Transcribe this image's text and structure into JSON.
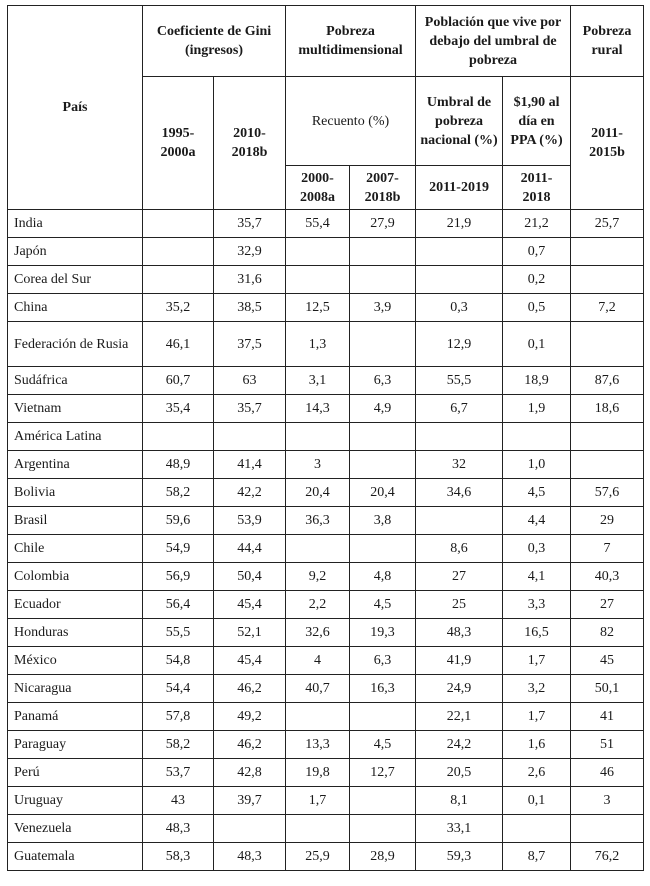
{
  "headers": {
    "pais": "País",
    "gini": "Coeficiente de Gini (ingresos)",
    "pobreza_multi": "Pobreza multidimensional",
    "umbral": "Población que vive por debajo del umbral de pobreza",
    "pobreza_rural": "Pobreza rural",
    "gini_1995": "1995-2000a",
    "gini_2010": "2010-2018b",
    "recuento": "Recuento (%)",
    "umbral_nacional": "Umbral de pobreza nacional (%)",
    "ppa": "$1,90 al día en PPA (%)",
    "rural_2011": "2011-2015b",
    "multi_2000": "2000-2008a",
    "multi_2007": "2007-2018b",
    "nac_2011": "2011-2019",
    "ppa_2011": "2011-2018"
  },
  "rows": [
    {
      "country": "India",
      "gini_a": "",
      "gini_b": "35,7",
      "multi_a": "55,4",
      "multi_b": "27,9",
      "nacional": "21,9",
      "ppa": "21,2",
      "rural": "25,7"
    },
    {
      "country": "Japón",
      "gini_a": "",
      "gini_b": "32,9",
      "multi_a": "",
      "multi_b": "",
      "nacional": "",
      "ppa": "0,7",
      "rural": ""
    },
    {
      "country": "Corea del Sur",
      "gini_a": "",
      "gini_b": "31,6",
      "multi_a": "",
      "multi_b": "",
      "nacional": "",
      "ppa": "0,2",
      "rural": ""
    },
    {
      "country": "China",
      "gini_a": "35,2",
      "gini_b": "38,5",
      "multi_a": "12,5",
      "multi_b": "3,9",
      "nacional": "0,3",
      "ppa": "0,5",
      "rural": "7,2"
    },
    {
      "country": "Federación de Rusia",
      "gini_a": "46,1",
      "gini_b": "37,5",
      "multi_a": "1,3",
      "multi_b": "",
      "nacional": "12,9",
      "ppa": "0,1",
      "rural": ""
    },
    {
      "country": "Sudáfrica",
      "gini_a": "60,7",
      "gini_b": "63",
      "multi_a": "3,1",
      "multi_b": "6,3",
      "nacional": "55,5",
      "ppa": "18,9",
      "rural": "87,6"
    },
    {
      "country": "Vietnam",
      "gini_a": "35,4",
      "gini_b": "35,7",
      "multi_a": "14,3",
      "multi_b": "4,9",
      "nacional": "6,7",
      "ppa": "1,9",
      "rural": "18,6"
    },
    {
      "country": "América Latina",
      "gini_a": "",
      "gini_b": "",
      "multi_a": "",
      "multi_b": "",
      "nacional": "",
      "ppa": "",
      "rural": ""
    },
    {
      "country": "Argentina",
      "gini_a": "48,9",
      "gini_b": "41,4",
      "multi_a": "3",
      "multi_b": "",
      "nacional": "32",
      "ppa": "1,0",
      "rural": ""
    },
    {
      "country": "Bolivia",
      "gini_a": "58,2",
      "gini_b": "42,2",
      "multi_a": "20,4",
      "multi_b": "20,4",
      "nacional": "34,6",
      "ppa": "4,5",
      "rural": "57,6"
    },
    {
      "country": "Brasil",
      "gini_a": "59,6",
      "gini_b": "53,9",
      "multi_a": "36,3",
      "multi_b": "3,8",
      "nacional": "",
      "ppa": "4,4",
      "rural": "29"
    },
    {
      "country": "Chile",
      "gini_a": "54,9",
      "gini_b": "44,4",
      "multi_a": "",
      "multi_b": "",
      "nacional": "8,6",
      "ppa": "0,3",
      "rural": "7"
    },
    {
      "country": "Colombia",
      "gini_a": "56,9",
      "gini_b": "50,4",
      "multi_a": "9,2",
      "multi_b": "4,8",
      "nacional": "27",
      "ppa": "4,1",
      "rural": "40,3"
    },
    {
      "country": "Ecuador",
      "gini_a": "56,4",
      "gini_b": "45,4",
      "multi_a": "2,2",
      "multi_b": "4,5",
      "nacional": "25",
      "ppa": "3,3",
      "rural": "27"
    },
    {
      "country": "Honduras",
      "gini_a": "55,5",
      "gini_b": "52,1",
      "multi_a": "32,6",
      "multi_b": "19,3",
      "nacional": "48,3",
      "ppa": "16,5",
      "rural": "82"
    },
    {
      "country": "México",
      "gini_a": "54,8",
      "gini_b": "45,4",
      "multi_a": "4",
      "multi_b": "6,3",
      "nacional": "41,9",
      "ppa": "1,7",
      "rural": "45"
    },
    {
      "country": "Nicaragua",
      "gini_a": "54,4",
      "gini_b": "46,2",
      "multi_a": "40,7",
      "multi_b": "16,3",
      "nacional": "24,9",
      "ppa": "3,2",
      "rural": "50,1"
    },
    {
      "country": "Panamá",
      "gini_a": "57,8",
      "gini_b": "49,2",
      "multi_a": "",
      "multi_b": "",
      "nacional": "22,1",
      "ppa": "1,7",
      "rural": "41"
    },
    {
      "country": "Paraguay",
      "gini_a": "58,2",
      "gini_b": "46,2",
      "multi_a": "13,3",
      "multi_b": "4,5",
      "nacional": "24,2",
      "ppa": "1,6",
      "rural": "51"
    },
    {
      "country": "Perú",
      "gini_a": "53,7",
      "gini_b": "42,8",
      "multi_a": "19,8",
      "multi_b": "12,7",
      "nacional": "20,5",
      "ppa": "2,6",
      "rural": "46"
    },
    {
      "country": "Uruguay",
      "gini_a": "43",
      "gini_b": "39,7",
      "multi_a": "1,7",
      "multi_b": "",
      "nacional": "8,1",
      "ppa": "0,1",
      "rural": "3"
    },
    {
      "country": "Venezuela",
      "gini_a": "48,3",
      "gini_b": "",
      "multi_a": "",
      "multi_b": "",
      "nacional": "33,1",
      "ppa": "",
      "rural": ""
    },
    {
      "country": "Guatemala",
      "gini_a": "58,3",
      "gini_b": "48,3",
      "multi_a": "25,9",
      "multi_b": "28,9",
      "nacional": "59,3",
      "ppa": "8,7",
      "rural": "76,2"
    }
  ]
}
